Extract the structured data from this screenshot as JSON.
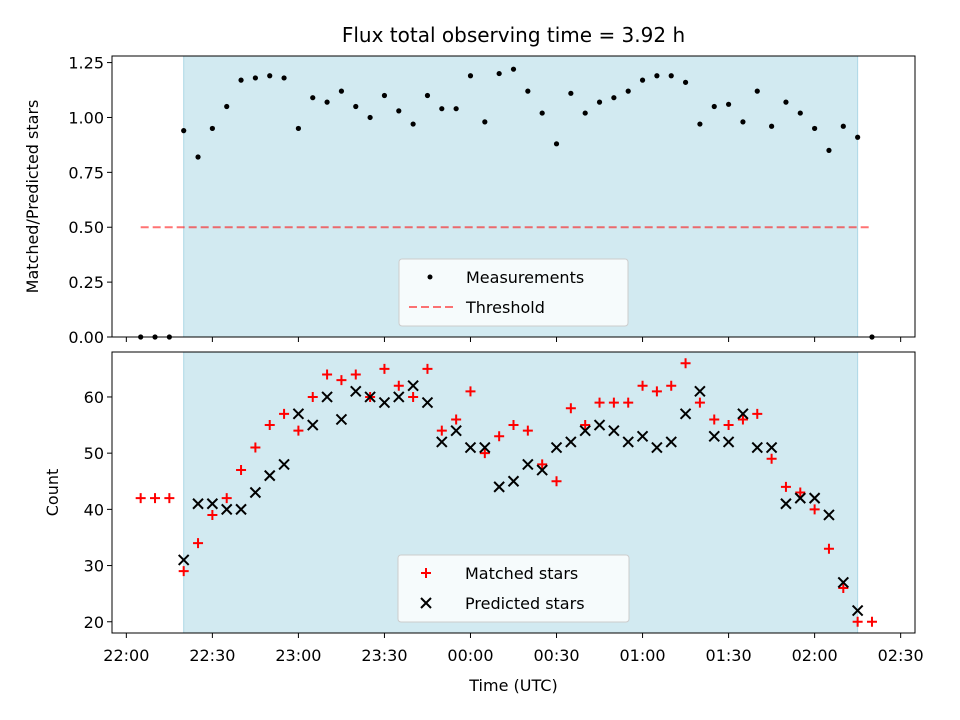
{
  "chart_data": [
    {
      "type": "scatter",
      "title": "Flux total observing time = 3.92 h",
      "xlabel": "",
      "ylabel": "Matched/Predicted stars",
      "xlim": [
        "21:55",
        "02:35"
      ],
      "ylim": [
        0,
        1.28
      ],
      "yticks": [
        "0.00",
        "0.25",
        "0.50",
        "0.75",
        "1.00",
        "1.25"
      ],
      "xtick_labels_shown": false,
      "grid": false,
      "legend": "lower center",
      "observing_window": {
        "start": "22:20",
        "end": "02:15",
        "color": "#add8e6"
      },
      "threshold": {
        "name": "Threshold",
        "value": 0.5,
        "x_start": "22:05",
        "x_end": "02:20",
        "color": "#ff0000"
      },
      "series": [
        {
          "name": "Measurements",
          "marker": "dot",
          "color": "#000000",
          "x": [
            "22:05",
            "22:10",
            "22:15",
            "22:20",
            "22:25",
            "22:30",
            "22:35",
            "22:40",
            "22:45",
            "22:50",
            "22:55",
            "23:00",
            "23:05",
            "23:10",
            "23:15",
            "23:20",
            "23:25",
            "23:30",
            "23:35",
            "23:40",
            "23:45",
            "23:50",
            "23:55",
            "00:00",
            "00:05",
            "00:10",
            "00:15",
            "00:20",
            "00:25",
            "00:30",
            "00:35",
            "00:40",
            "00:45",
            "00:50",
            "00:55",
            "01:00",
            "01:05",
            "01:10",
            "01:15",
            "01:20",
            "01:25",
            "01:30",
            "01:35",
            "01:40",
            "01:45",
            "01:50",
            "01:55",
            "02:00",
            "02:05",
            "02:10",
            "02:15",
            "02:20"
          ],
          "y": [
            0,
            0,
            0,
            0.94,
            0.82,
            0.95,
            1.05,
            1.17,
            1.18,
            1.19,
            1.18,
            0.95,
            1.09,
            1.07,
            1.12,
            1.05,
            1.0,
            1.1,
            1.03,
            0.97,
            1.1,
            1.04,
            1.04,
            1.19,
            0.98,
            1.2,
            1.22,
            1.12,
            1.02,
            0.88,
            1.11,
            1.02,
            1.07,
            1.09,
            1.12,
            1.17,
            1.19,
            1.19,
            1.16,
            0.97,
            1.05,
            1.06,
            0.98,
            1.12,
            0.96,
            1.07,
            1.02,
            0.95,
            0.85,
            0.96,
            0.91,
            0
          ]
        }
      ]
    },
    {
      "type": "scatter",
      "title": "",
      "xlabel": "Time (UTC)",
      "ylabel": "Count",
      "xlim": [
        "21:55",
        "02:35"
      ],
      "ylim": [
        18,
        68
      ],
      "yticks": [
        "20",
        "30",
        "40",
        "50",
        "60"
      ],
      "xticks": [
        "22:00",
        "22:30",
        "23:00",
        "23:30",
        "00:00",
        "00:30",
        "01:00",
        "01:30",
        "02:00",
        "02:30"
      ],
      "grid": false,
      "legend": "lower center",
      "observing_window": {
        "start": "22:20",
        "end": "02:15",
        "color": "#add8e6"
      },
      "series": [
        {
          "name": "Matched stars",
          "marker": "plus",
          "color": "#ff0000",
          "x": [
            "22:05",
            "22:10",
            "22:15",
            "22:20",
            "22:25",
            "22:30",
            "22:35",
            "22:40",
            "22:45",
            "22:50",
            "22:55",
            "23:00",
            "23:05",
            "23:10",
            "23:15",
            "23:20",
            "23:25",
            "23:30",
            "23:35",
            "23:40",
            "23:45",
            "23:50",
            "23:55",
            "00:00",
            "00:05",
            "00:10",
            "00:15",
            "00:20",
            "00:25",
            "00:30",
            "00:35",
            "00:40",
            "00:45",
            "00:50",
            "00:55",
            "01:00",
            "01:05",
            "01:10",
            "01:15",
            "01:20",
            "01:25",
            "01:30",
            "01:35",
            "01:40",
            "01:45",
            "01:50",
            "01:55",
            "02:00",
            "02:05",
            "02:10",
            "02:15",
            "02:20"
          ],
          "y": [
            42,
            42,
            42,
            29,
            34,
            39,
            42,
            47,
            51,
            55,
            57,
            54,
            60,
            64,
            63,
            64,
            60,
            65,
            62,
            60,
            65,
            54,
            56,
            61,
            50,
            53,
            55,
            54,
            48,
            45,
            58,
            55,
            59,
            59,
            59,
            62,
            61,
            62,
            66,
            59,
            56,
            55,
            56,
            57,
            49,
            44,
            43,
            40,
            33,
            26,
            20,
            20
          ]
        },
        {
          "name": "Predicted stars",
          "marker": "x",
          "color": "#000000",
          "x": [
            "22:20",
            "22:25",
            "22:30",
            "22:35",
            "22:40",
            "22:45",
            "22:50",
            "22:55",
            "23:00",
            "23:05",
            "23:10",
            "23:15",
            "23:20",
            "23:25",
            "23:30",
            "23:35",
            "23:40",
            "23:45",
            "23:50",
            "23:55",
            "00:00",
            "00:05",
            "00:10",
            "00:15",
            "00:20",
            "00:25",
            "00:30",
            "00:35",
            "00:40",
            "00:45",
            "00:50",
            "00:55",
            "01:00",
            "01:05",
            "01:10",
            "01:15",
            "01:20",
            "01:25",
            "01:30",
            "01:35",
            "01:40",
            "01:45",
            "01:50",
            "01:55",
            "02:00",
            "02:05",
            "02:10",
            "02:15"
          ],
          "y": [
            31,
            41,
            41,
            40,
            40,
            43,
            46,
            48,
            57,
            55,
            60,
            56,
            61,
            60,
            59,
            60,
            62,
            59,
            52,
            54,
            51,
            51,
            44,
            45,
            48,
            47,
            51,
            52,
            54,
            55,
            54,
            52,
            53,
            51,
            52,
            57,
            61,
            53,
            52,
            57,
            51,
            51,
            41,
            42,
            42,
            39,
            27,
            22
          ]
        }
      ]
    }
  ]
}
